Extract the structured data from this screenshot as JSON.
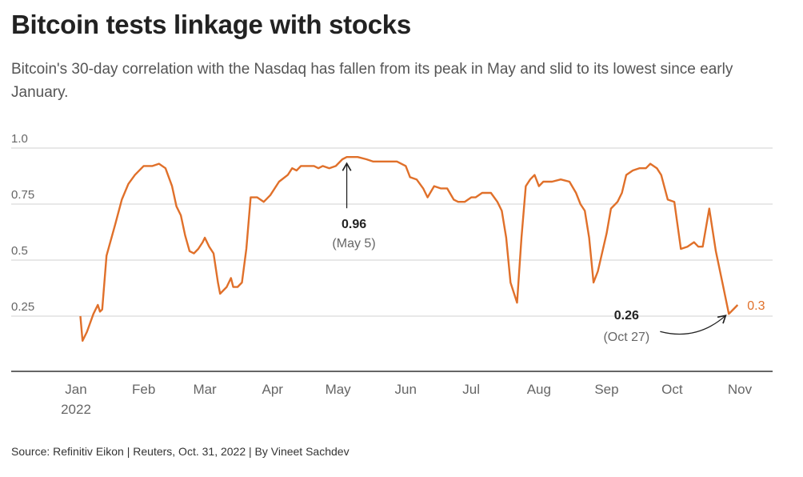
{
  "header": {
    "title": "Bitcoin tests linkage with stocks",
    "subtitle": "Bitcoin's 30-day correlation with the Nasdaq has fallen from its peak in May and slid to its lowest since early January."
  },
  "footer": {
    "source": "Source: Refinitiv Eikon | Reuters, Oct. 31, 2022 | By Vineet Sachdev"
  },
  "colors": {
    "series": "#e0702a",
    "grid": "#d9d9d9",
    "axis": "#333333",
    "tick_text": "#666666",
    "annotation_text": "#222222"
  },
  "chart_data": {
    "type": "line",
    "title": "",
    "xlabel": "",
    "ylabel": "",
    "ylim": [
      0,
      1.0
    ],
    "grid": true,
    "yticks": [
      {
        "value": 1.0,
        "label": "1.0"
      },
      {
        "value": 0.75,
        "label": "0.75"
      },
      {
        "value": 0.5,
        "label": "0.5"
      },
      {
        "value": 0.25,
        "label": "0.25"
      }
    ],
    "xticks": [
      {
        "date": "2022-01-01",
        "label": "Jan",
        "sublabel": "2022"
      },
      {
        "date": "2022-02-01",
        "label": "Feb"
      },
      {
        "date": "2022-03-01",
        "label": "Mar"
      },
      {
        "date": "2022-04-01",
        "label": "Apr"
      },
      {
        "date": "2022-05-01",
        "label": "May"
      },
      {
        "date": "2022-06-01",
        "label": "Jun"
      },
      {
        "date": "2022-07-01",
        "label": "Jul"
      },
      {
        "date": "2022-08-01",
        "label": "Aug"
      },
      {
        "date": "2022-09-01",
        "label": "Sep"
      },
      {
        "date": "2022-10-01",
        "label": "Oct"
      },
      {
        "date": "2022-11-01",
        "label": "Nov"
      }
    ],
    "series": [
      {
        "end_label": "0.3",
        "points": [
          [
            "2022-01-03",
            0.25
          ],
          [
            "2022-01-04",
            0.14
          ],
          [
            "2022-01-06",
            0.18
          ],
          [
            "2022-01-09",
            0.26
          ],
          [
            "2022-01-11",
            0.3
          ],
          [
            "2022-01-12",
            0.27
          ],
          [
            "2022-01-13",
            0.28
          ],
          [
            "2022-01-15",
            0.52
          ],
          [
            "2022-01-19",
            0.66
          ],
          [
            "2022-01-22",
            0.77
          ],
          [
            "2022-01-25",
            0.84
          ],
          [
            "2022-01-28",
            0.88
          ],
          [
            "2022-02-01",
            0.92
          ],
          [
            "2022-02-05",
            0.92
          ],
          [
            "2022-02-08",
            0.93
          ],
          [
            "2022-02-11",
            0.91
          ],
          [
            "2022-02-14",
            0.83
          ],
          [
            "2022-02-16",
            0.74
          ],
          [
            "2022-02-18",
            0.7
          ],
          [
            "2022-02-20",
            0.61
          ],
          [
            "2022-02-22",
            0.54
          ],
          [
            "2022-02-24",
            0.53
          ],
          [
            "2022-02-26",
            0.55
          ],
          [
            "2022-02-28",
            0.58
          ],
          [
            "2022-03-01",
            0.6
          ],
          [
            "2022-03-03",
            0.56
          ],
          [
            "2022-03-05",
            0.53
          ],
          [
            "2022-03-07",
            0.4
          ],
          [
            "2022-03-08",
            0.35
          ],
          [
            "2022-03-11",
            0.38
          ],
          [
            "2022-03-13",
            0.42
          ],
          [
            "2022-03-14",
            0.38
          ],
          [
            "2022-03-16",
            0.38
          ],
          [
            "2022-03-18",
            0.4
          ],
          [
            "2022-03-20",
            0.55
          ],
          [
            "2022-03-22",
            0.78
          ],
          [
            "2022-03-25",
            0.78
          ],
          [
            "2022-03-28",
            0.76
          ],
          [
            "2022-03-31",
            0.79
          ],
          [
            "2022-04-04",
            0.85
          ],
          [
            "2022-04-08",
            0.88
          ],
          [
            "2022-04-10",
            0.91
          ],
          [
            "2022-04-12",
            0.9
          ],
          [
            "2022-04-14",
            0.92
          ],
          [
            "2022-04-20",
            0.92
          ],
          [
            "2022-04-22",
            0.91
          ],
          [
            "2022-04-24",
            0.92
          ],
          [
            "2022-04-27",
            0.91
          ],
          [
            "2022-04-30",
            0.92
          ],
          [
            "2022-05-03",
            0.95
          ],
          [
            "2022-05-05",
            0.96
          ],
          [
            "2022-05-10",
            0.96
          ],
          [
            "2022-05-14",
            0.95
          ],
          [
            "2022-05-17",
            0.94
          ],
          [
            "2022-05-20",
            0.94
          ],
          [
            "2022-05-25",
            0.94
          ],
          [
            "2022-05-28",
            0.94
          ],
          [
            "2022-06-01",
            0.92
          ],
          [
            "2022-06-03",
            0.87
          ],
          [
            "2022-06-06",
            0.86
          ],
          [
            "2022-06-09",
            0.82
          ],
          [
            "2022-06-11",
            0.78
          ],
          [
            "2022-06-14",
            0.83
          ],
          [
            "2022-06-17",
            0.82
          ],
          [
            "2022-06-20",
            0.82
          ],
          [
            "2022-06-23",
            0.77
          ],
          [
            "2022-06-25",
            0.76
          ],
          [
            "2022-06-28",
            0.76
          ],
          [
            "2022-07-01",
            0.78
          ],
          [
            "2022-07-03",
            0.78
          ],
          [
            "2022-07-06",
            0.8
          ],
          [
            "2022-07-10",
            0.8
          ],
          [
            "2022-07-13",
            0.76
          ],
          [
            "2022-07-15",
            0.72
          ],
          [
            "2022-07-17",
            0.6
          ],
          [
            "2022-07-19",
            0.4
          ],
          [
            "2022-07-22",
            0.31
          ],
          [
            "2022-07-24",
            0.6
          ],
          [
            "2022-07-26",
            0.83
          ],
          [
            "2022-07-28",
            0.86
          ],
          [
            "2022-07-30",
            0.88
          ],
          [
            "2022-08-01",
            0.83
          ],
          [
            "2022-08-03",
            0.85
          ],
          [
            "2022-08-07",
            0.85
          ],
          [
            "2022-08-11",
            0.86
          ],
          [
            "2022-08-15",
            0.85
          ],
          [
            "2022-08-18",
            0.8
          ],
          [
            "2022-08-20",
            0.75
          ],
          [
            "2022-08-22",
            0.72
          ],
          [
            "2022-08-24",
            0.6
          ],
          [
            "2022-08-26",
            0.4
          ],
          [
            "2022-08-28",
            0.45
          ],
          [
            "2022-09-01",
            0.62
          ],
          [
            "2022-09-03",
            0.73
          ],
          [
            "2022-09-06",
            0.76
          ],
          [
            "2022-09-08",
            0.8
          ],
          [
            "2022-09-10",
            0.88
          ],
          [
            "2022-09-13",
            0.9
          ],
          [
            "2022-09-16",
            0.91
          ],
          [
            "2022-09-19",
            0.91
          ],
          [
            "2022-09-21",
            0.93
          ],
          [
            "2022-09-24",
            0.91
          ],
          [
            "2022-09-26",
            0.88
          ],
          [
            "2022-09-29",
            0.77
          ],
          [
            "2022-10-02",
            0.76
          ],
          [
            "2022-10-05",
            0.55
          ],
          [
            "2022-10-08",
            0.56
          ],
          [
            "2022-10-11",
            0.58
          ],
          [
            "2022-10-13",
            0.56
          ],
          [
            "2022-10-15",
            0.56
          ],
          [
            "2022-10-18",
            0.73
          ],
          [
            "2022-10-21",
            0.54
          ],
          [
            "2022-10-24",
            0.4
          ],
          [
            "2022-10-27",
            0.26
          ],
          [
            "2022-10-29",
            0.28
          ],
          [
            "2022-10-31",
            0.3
          ]
        ]
      }
    ],
    "annotations": [
      {
        "date": "2022-05-05",
        "value": 0.96,
        "label": "0.96",
        "sublabel": "(May 5)"
      },
      {
        "date": "2022-10-27",
        "value": 0.26,
        "label": "0.26",
        "sublabel": "(Oct 27)"
      }
    ]
  }
}
